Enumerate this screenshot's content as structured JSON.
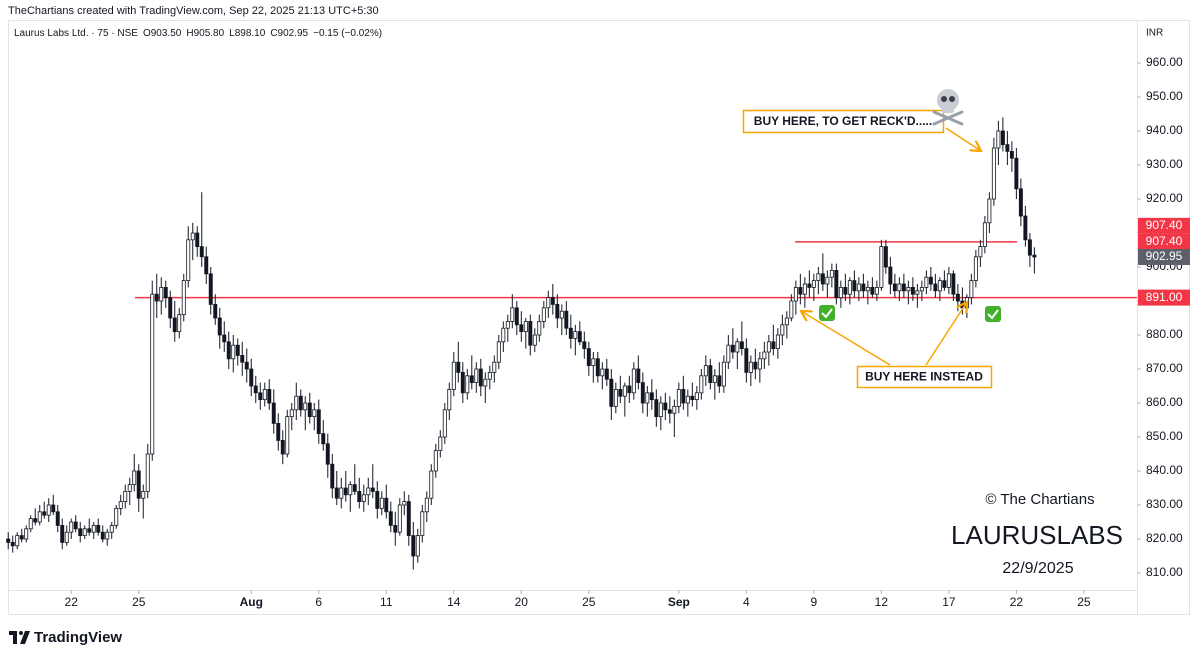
{
  "header": "TheChartians created with TradingView.com, Sep 22, 2025 21:13 UTC+5:30",
  "legend": [
    "Laurus Labs Ltd. · 75 · NSE",
    "O903.50",
    "H905.80",
    "L898.10",
    "C902.95",
    "−0.15 (−0.02%)"
  ],
  "currency": "INR",
  "brand": "TradingView",
  "chart_data": {
    "type": "candlestick",
    "up_color": "#ffffff",
    "down_color": "#131722",
    "border_color": "#131722",
    "xlim": [
      -0.05,
      250.8
    ],
    "xticks": [
      {
        "value": 14,
        "label": "22"
      },
      {
        "value": 29,
        "label": "25"
      },
      {
        "value": 54,
        "label": "Aug"
      },
      {
        "value": 69,
        "label": "6"
      },
      {
        "value": 84,
        "label": "11"
      },
      {
        "value": 99,
        "label": "14"
      },
      {
        "value": 114,
        "label": "20"
      },
      {
        "value": 129,
        "label": "25"
      },
      {
        "value": 149,
        "label": "Sep"
      },
      {
        "value": 164,
        "label": "4"
      },
      {
        "value": 179,
        "label": "9"
      },
      {
        "value": 194,
        "label": "12"
      },
      {
        "value": 209,
        "label": "17"
      },
      {
        "value": 224,
        "label": "22"
      },
      {
        "value": 239,
        "label": "25"
      }
    ],
    "ylim": [
      805,
      965.3
    ],
    "yticks": [
      {
        "value": 810,
        "label": "810.00"
      },
      {
        "value": 820,
        "label": "820.00"
      },
      {
        "value": 830,
        "label": "830.00"
      },
      {
        "value": 840,
        "label": "840.00"
      },
      {
        "value": 850,
        "label": "850.00"
      },
      {
        "value": 860,
        "label": "860.00"
      },
      {
        "value": 870,
        "label": "870.00"
      },
      {
        "value": 880,
        "label": "880.00"
      },
      {
        "value": 890,
        "label": "890.00"
      },
      {
        "value": 900,
        "label": "900.00"
      },
      {
        "value": 910,
        "label": "910.00"
      },
      {
        "value": 920,
        "label": "920.00"
      },
      {
        "value": 930,
        "label": "930.00"
      },
      {
        "value": 940,
        "label": "940.00"
      },
      {
        "value": 950,
        "label": "950.00"
      },
      {
        "value": 960,
        "label": "960.00"
      }
    ],
    "hlines": [
      {
        "value": 891,
        "color": "#f23645"
      },
      {
        "value": 907.4,
        "color": "#f23645"
      }
    ],
    "price_labels": [
      {
        "value": 907.4,
        "label": "907.40",
        "color": "#f23645"
      },
      {
        "value": 907.4,
        "label": "907.40",
        "color": "#f23645"
      },
      {
        "value": 902.95,
        "label": "902.95",
        "color": "#5d606b"
      },
      {
        "value": 891,
        "label": "891.00",
        "color": "#f23645"
      }
    ],
    "annotations": [
      "BUY HERE, TO GET RECK'D.....",
      "BUY HERE INSTEAD",
      "© The Chartians",
      "LAURUSLABS",
      "22/9/2025"
    ],
    "ohlc": [
      [
        820,
        822,
        817,
        819
      ],
      [
        819,
        821,
        816,
        818
      ],
      [
        818,
        822,
        817,
        821
      ],
      [
        821,
        823,
        819,
        820
      ],
      [
        820,
        824,
        819,
        823
      ],
      [
        823,
        827,
        822,
        826
      ],
      [
        826,
        829,
        824,
        825
      ],
      [
        825,
        830,
        824,
        828
      ],
      [
        828,
        831,
        826,
        827
      ],
      [
        827,
        832,
        825,
        830
      ],
      [
        830,
        833,
        827,
        828
      ],
      [
        828,
        830,
        822,
        824
      ],
      [
        824,
        826,
        817,
        819
      ],
      [
        819,
        824,
        818,
        822
      ],
      [
        822,
        826,
        820,
        825
      ],
      [
        825,
        827,
        822,
        823
      ],
      [
        823,
        825,
        819,
        821
      ],
      [
        821,
        824,
        820,
        823
      ],
      [
        823,
        826,
        821,
        822
      ],
      [
        822,
        825,
        820,
        824
      ],
      [
        824,
        826,
        821,
        822
      ],
      [
        822,
        824,
        819,
        820
      ],
      [
        820,
        823,
        818,
        822
      ],
      [
        822,
        825,
        820,
        824
      ],
      [
        824,
        830,
        823,
        829
      ],
      [
        829,
        833,
        827,
        831
      ],
      [
        831,
        836,
        829,
        834
      ],
      [
        834,
        838,
        830,
        836
      ],
      [
        836,
        845,
        834,
        840
      ],
      [
        840,
        842,
        828,
        832
      ],
      [
        832,
        836,
        826,
        834
      ],
      [
        834,
        848,
        832,
        845
      ],
      [
        845,
        896,
        843,
        892
      ],
      [
        892,
        898,
        885,
        890
      ],
      [
        890,
        897,
        886,
        894
      ],
      [
        894,
        896,
        888,
        891
      ],
      [
        891,
        893,
        882,
        885
      ],
      [
        885,
        890,
        878,
        881
      ],
      [
        881,
        888,
        879,
        886
      ],
      [
        886,
        898,
        884,
        896
      ],
      [
        896,
        912,
        894,
        908
      ],
      [
        908,
        913,
        902,
        910
      ],
      [
        910,
        912,
        903,
        906
      ],
      [
        906,
        922,
        900,
        903
      ],
      [
        903,
        906,
        895,
        898
      ],
      [
        898,
        900,
        886,
        889
      ],
      [
        889,
        892,
        883,
        885
      ],
      [
        885,
        888,
        876,
        880
      ],
      [
        880,
        884,
        875,
        878
      ],
      [
        878,
        881,
        870,
        873
      ],
      [
        873,
        880,
        869,
        877
      ],
      [
        877,
        879,
        871,
        874
      ],
      [
        874,
        878,
        868,
        872
      ],
      [
        872,
        876,
        866,
        870
      ],
      [
        870,
        873,
        862,
        865
      ],
      [
        865,
        868,
        860,
        863
      ],
      [
        863,
        866,
        858,
        861
      ],
      [
        861,
        866,
        859,
        864
      ],
      [
        864,
        867,
        858,
        860
      ],
      [
        860,
        864,
        851,
        854
      ],
      [
        854,
        857,
        846,
        849
      ],
      [
        849,
        852,
        842,
        845
      ],
      [
        845,
        858,
        844,
        856
      ],
      [
        856,
        860,
        852,
        858
      ],
      [
        858,
        866,
        855,
        862
      ],
      [
        862,
        864,
        856,
        858
      ],
      [
        858,
        862,
        852,
        860
      ],
      [
        860,
        863,
        854,
        856
      ],
      [
        856,
        860,
        852,
        858
      ],
      [
        858,
        861,
        848,
        851
      ],
      [
        851,
        855,
        846,
        848
      ],
      [
        848,
        851,
        838,
        842
      ],
      [
        842,
        845,
        832,
        835
      ],
      [
        835,
        840,
        830,
        832
      ],
      [
        832,
        838,
        829,
        835
      ],
      [
        835,
        840,
        831,
        833
      ],
      [
        833,
        837,
        828,
        836
      ],
      [
        836,
        842,
        833,
        834
      ],
      [
        834,
        838,
        829,
        831
      ],
      [
        831,
        836,
        828,
        833
      ],
      [
        833,
        838,
        830,
        835
      ],
      [
        835,
        842,
        832,
        834
      ],
      [
        834,
        837,
        826,
        829
      ],
      [
        829,
        834,
        827,
        832
      ],
      [
        832,
        836,
        826,
        828
      ],
      [
        828,
        831,
        822,
        824
      ],
      [
        824,
        828,
        818,
        822
      ],
      [
        822,
        832,
        821,
        830
      ],
      [
        830,
        834,
        827,
        831
      ],
      [
        831,
        833,
        818,
        821
      ],
      [
        821,
        825,
        811,
        815
      ],
      [
        815,
        823,
        813,
        821
      ],
      [
        821,
        830,
        819,
        828
      ],
      [
        828,
        834,
        825,
        832
      ],
      [
        832,
        842,
        830,
        840
      ],
      [
        840,
        848,
        838,
        846
      ],
      [
        846,
        852,
        844,
        850
      ],
      [
        850,
        860,
        848,
        858
      ],
      [
        858,
        866,
        855,
        864
      ],
      [
        864,
        875,
        862,
        872
      ],
      [
        872,
        878,
        866,
        869
      ],
      [
        869,
        872,
        860,
        863
      ],
      [
        863,
        870,
        861,
        868
      ],
      [
        868,
        874,
        864,
        866
      ],
      [
        866,
        872,
        863,
        870
      ],
      [
        870,
        873,
        862,
        865
      ],
      [
        865,
        869,
        860,
        867
      ],
      [
        867,
        871,
        864,
        869
      ],
      [
        869,
        874,
        866,
        872
      ],
      [
        872,
        880,
        870,
        878
      ],
      [
        878,
        884,
        875,
        882
      ],
      [
        882,
        886,
        878,
        884
      ],
      [
        884,
        892,
        882,
        888
      ],
      [
        888,
        890,
        880,
        883
      ],
      [
        883,
        887,
        878,
        881
      ],
      [
        881,
        885,
        876,
        884
      ],
      [
        884,
        886,
        874,
        877
      ],
      [
        877,
        882,
        875,
        880
      ],
      [
        880,
        886,
        878,
        884
      ],
      [
        884,
        890,
        882,
        888
      ],
      [
        888,
        893,
        885,
        891
      ],
      [
        891,
        895,
        886,
        889
      ],
      [
        889,
        892,
        882,
        885
      ],
      [
        885,
        889,
        880,
        887
      ],
      [
        887,
        890,
        880,
        882
      ],
      [
        882,
        886,
        876,
        879
      ],
      [
        879,
        883,
        874,
        881
      ],
      [
        881,
        884,
        877,
        878
      ],
      [
        878,
        881,
        873,
        876
      ],
      [
        876,
        878,
        868,
        871
      ],
      [
        871,
        875,
        866,
        873
      ],
      [
        873,
        875,
        866,
        868
      ],
      [
        868,
        872,
        864,
        870
      ],
      [
        870,
        873,
        865,
        867
      ],
      [
        867,
        870,
        855,
        859
      ],
      [
        859,
        866,
        857,
        864
      ],
      [
        864,
        868,
        860,
        862
      ],
      [
        862,
        866,
        856,
        865
      ],
      [
        865,
        868,
        860,
        863
      ],
      [
        863,
        872,
        861,
        870
      ],
      [
        870,
        874,
        864,
        866
      ],
      [
        866,
        869,
        857,
        860
      ],
      [
        860,
        865,
        856,
        863
      ],
      [
        863,
        867,
        858,
        861
      ],
      [
        861,
        864,
        853,
        856
      ],
      [
        856,
        862,
        852,
        860
      ],
      [
        860,
        863,
        855,
        858
      ],
      [
        858,
        862,
        854,
        857
      ],
      [
        857,
        861,
        850,
        859
      ],
      [
        859,
        866,
        857,
        864
      ],
      [
        864,
        868,
        858,
        860
      ],
      [
        860,
        864,
        856,
        862
      ],
      [
        862,
        866,
        859,
        861
      ],
      [
        861,
        865,
        858,
        863
      ],
      [
        863,
        870,
        861,
        868
      ],
      [
        868,
        874,
        865,
        871
      ],
      [
        871,
        873,
        864,
        866
      ],
      [
        866,
        870,
        861,
        868
      ],
      [
        868,
        872,
        863,
        865
      ],
      [
        865,
        874,
        863,
        872
      ],
      [
        872,
        880,
        870,
        877
      ],
      [
        877,
        882,
        873,
        875
      ],
      [
        875,
        879,
        870,
        878
      ],
      [
        878,
        884,
        874,
        876
      ],
      [
        876,
        879,
        866,
        869
      ],
      [
        869,
        874,
        865,
        872
      ],
      [
        872,
        876,
        867,
        870
      ],
      [
        870,
        875,
        866,
        873
      ],
      [
        873,
        878,
        870,
        875
      ],
      [
        875,
        880,
        871,
        878
      ],
      [
        878,
        883,
        874,
        876
      ],
      [
        876,
        882,
        873,
        880
      ],
      [
        880,
        886,
        877,
        883
      ],
      [
        883,
        887,
        879,
        885
      ],
      [
        885,
        892,
        884,
        890
      ],
      [
        890,
        896,
        886,
        894
      ],
      [
        894,
        898,
        889,
        892
      ],
      [
        892,
        897,
        888,
        895
      ],
      [
        895,
        899,
        891,
        894
      ],
      [
        894,
        898,
        890,
        896
      ],
      [
        896,
        900,
        892,
        898
      ],
      [
        898,
        904,
        893,
        895
      ],
      [
        895,
        899,
        891,
        897
      ],
      [
        897,
        901,
        894,
        899
      ],
      [
        899,
        901,
        889,
        891
      ],
      [
        891,
        896,
        888,
        894
      ],
      [
        894,
        898,
        890,
        892
      ],
      [
        892,
        897,
        889,
        896
      ],
      [
        896,
        899,
        891,
        893
      ],
      [
        893,
        897,
        890,
        895
      ],
      [
        895,
        898,
        891,
        893
      ],
      [
        893,
        896,
        889,
        894
      ],
      [
        894,
        897,
        891,
        892
      ],
      [
        892,
        896,
        890,
        894
      ],
      [
        894,
        908,
        893,
        906
      ],
      [
        906,
        908,
        898,
        900
      ],
      [
        900,
        903,
        892,
        895
      ],
      [
        895,
        898,
        891,
        893
      ],
      [
        893,
        897,
        890,
        895
      ],
      [
        895,
        898,
        891,
        893
      ],
      [
        893,
        896,
        889,
        894
      ],
      [
        894,
        897,
        890,
        892
      ],
      [
        892,
        895,
        888,
        893
      ],
      [
        893,
        896,
        890,
        894
      ],
      [
        894,
        899,
        892,
        897
      ],
      [
        897,
        900,
        893,
        895
      ],
      [
        895,
        898,
        891,
        893
      ],
      [
        893,
        897,
        890,
        896
      ],
      [
        896,
        899,
        893,
        894
      ],
      [
        894,
        900,
        892,
        898
      ],
      [
        898,
        899,
        890,
        892
      ],
      [
        892,
        895,
        887,
        890
      ],
      [
        890,
        894,
        886,
        888
      ],
      [
        888,
        892,
        885,
        891
      ],
      [
        891,
        898,
        889,
        896
      ],
      [
        896,
        905,
        894,
        903
      ],
      [
        903,
        908,
        900,
        906
      ],
      [
        906,
        915,
        904,
        913
      ],
      [
        913,
        922,
        910,
        920
      ],
      [
        920,
        938,
        918,
        935
      ],
      [
        935,
        943,
        930,
        940
      ],
      [
        940,
        944,
        934,
        936
      ],
      [
        936,
        940,
        930,
        934
      ],
      [
        934,
        937,
        928,
        932
      ],
      [
        932,
        935,
        920,
        923
      ],
      [
        923,
        926,
        912,
        915
      ],
      [
        915,
        918,
        906,
        908
      ],
      [
        908,
        910,
        900,
        903.5
      ],
      [
        903.5,
        905.8,
        898.1,
        902.95
      ]
    ]
  }
}
